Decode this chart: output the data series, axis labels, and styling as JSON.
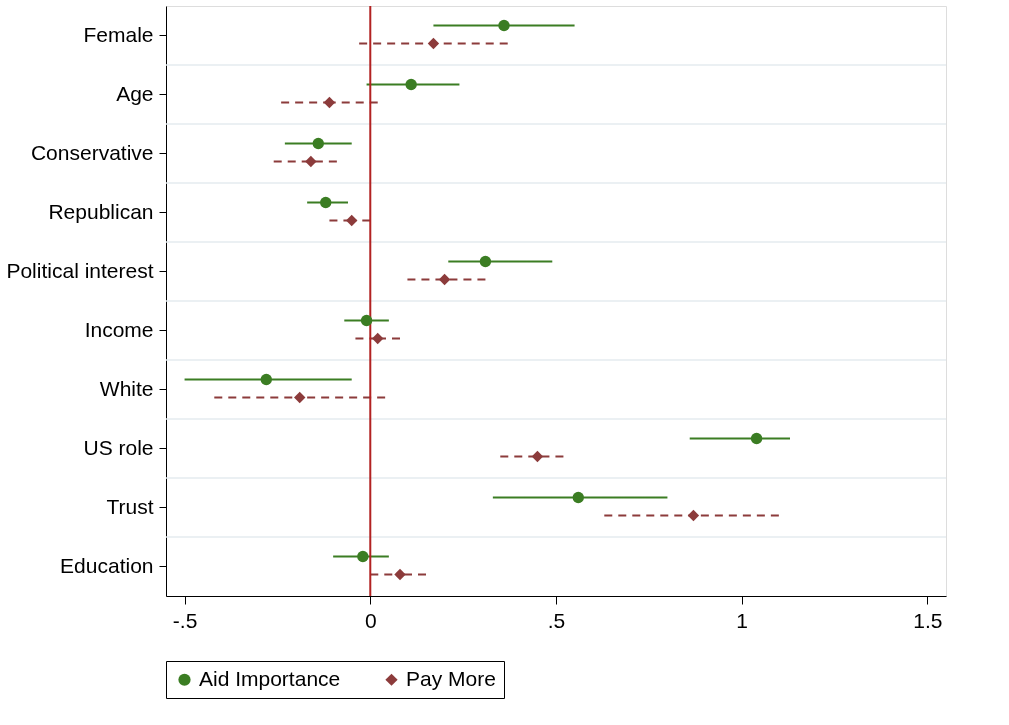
{
  "chart_data": {
    "type": "scatter",
    "orientation": "horizontal",
    "categories": [
      "Female",
      "Age",
      "Conservative",
      "Republican",
      "Political interest",
      "Income",
      "White",
      "US role",
      "Trust",
      "Education"
    ],
    "series": [
      {
        "name": "Aid Importance",
        "color": "#3b7d23",
        "marker": "circle",
        "line_style": "solid",
        "values": [
          0.36,
          0.11,
          -0.14,
          -0.12,
          0.31,
          -0.01,
          -0.28,
          1.04,
          0.56,
          -0.02
        ],
        "errors": [
          [
            0.17,
            0.55
          ],
          [
            -0.01,
            0.24
          ],
          [
            -0.23,
            -0.05
          ],
          [
            -0.17,
            -0.06
          ],
          [
            0.21,
            0.49
          ],
          [
            -0.07,
            0.05
          ],
          [
            -0.5,
            -0.05
          ],
          [
            0.86,
            1.13
          ],
          [
            0.33,
            0.8
          ],
          [
            -0.1,
            0.05
          ]
        ]
      },
      {
        "name": "Pay More",
        "color": "#8c3b3b",
        "marker": "diamond",
        "line_style": "dashed",
        "values": [
          0.17,
          -0.11,
          -0.16,
          -0.05,
          0.2,
          0.02,
          -0.19,
          0.45,
          0.87,
          0.08
        ],
        "errors": [
          [
            -0.03,
            0.37
          ],
          [
            -0.24,
            0.02
          ],
          [
            -0.26,
            -0.09
          ],
          [
            -0.11,
            0.0
          ],
          [
            0.1,
            0.31
          ],
          [
            -0.04,
            0.08
          ],
          [
            -0.42,
            0.04
          ],
          [
            0.35,
            0.52
          ],
          [
            0.63,
            1.1
          ],
          [
            0.0,
            0.15
          ]
        ]
      }
    ],
    "xlim": [
      -0.55,
      1.55
    ],
    "xticks": [
      {
        "value": -0.5,
        "label": "-.5"
      },
      0,
      {
        "value": 0.5,
        "label": ".5"
      },
      1,
      1.5
    ],
    "ref_lines": [
      {
        "axis": "x",
        "value": 0,
        "color": "#b22222"
      }
    ],
    "grid": "y",
    "legend": "bottom"
  }
}
